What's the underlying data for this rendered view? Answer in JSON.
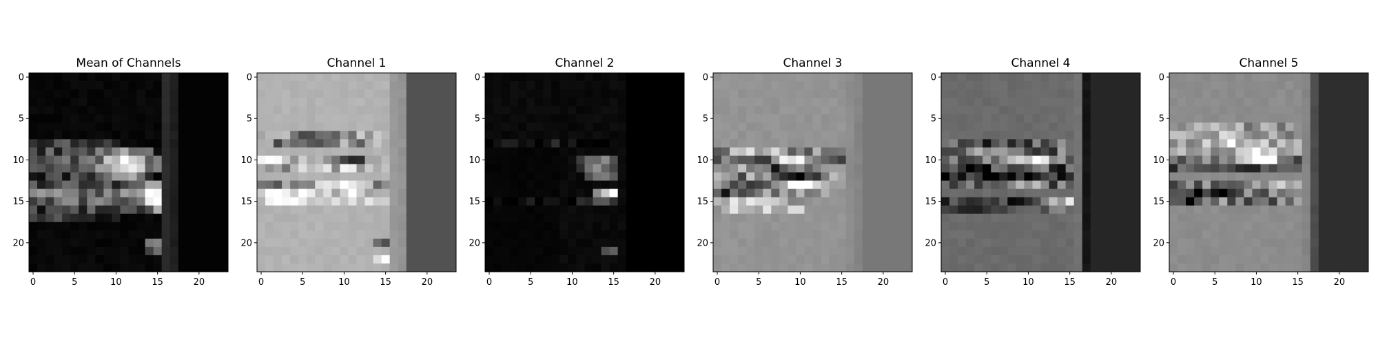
{
  "chart_data": [
    {
      "type": "heatmap",
      "title": "Mean of Channels",
      "colormap": "gray",
      "size": 24,
      "xticks": [
        0,
        5,
        10,
        15,
        20
      ],
      "yticks": [
        0,
        5,
        10,
        15,
        20
      ],
      "background_level": 0.03,
      "bands": [
        {
          "col_start": 16,
          "col_end": 16,
          "value": 0.17
        },
        {
          "col_start": 17,
          "col_end": 17,
          "value": 0.12
        },
        {
          "col_start": 18,
          "col_end": 23,
          "value": 0.01
        }
      ],
      "features": [
        {
          "row": 10,
          "col_start": 0,
          "col_end": 15,
          "peak_col": 11,
          "peak": 0.9,
          "base": 0.32,
          "spread": 0.45
        },
        {
          "row": 11,
          "col_start": 0,
          "col_end": 15,
          "peak_col": 11,
          "peak": 0.95,
          "base": 0.38,
          "spread": 0.42
        },
        {
          "row": 9,
          "col_start": 0,
          "col_end": 14,
          "peak_col": 11,
          "peak": 0.6,
          "base": 0.25,
          "spread": 0.4
        },
        {
          "row": 12,
          "col_start": 0,
          "col_end": 14,
          "peak_col": 11,
          "peak": 0.55,
          "base": 0.24,
          "spread": 0.4
        },
        {
          "row": 14,
          "col_start": 0,
          "col_end": 16,
          "peak_col": 15,
          "peak": 0.95,
          "base": 0.42,
          "spread": 0.45
        },
        {
          "row": 15,
          "col_start": 0,
          "col_end": 16,
          "peak_col": 15,
          "peak": 0.9,
          "base": 0.4,
          "spread": 0.42
        },
        {
          "row": 13,
          "col_start": 0,
          "col_end": 16,
          "peak_col": 15,
          "peak": 0.55,
          "base": 0.24,
          "spread": 0.4
        },
        {
          "row": 16,
          "col_start": 0,
          "col_end": 16,
          "peak_col": 15,
          "peak": 0.5,
          "base": 0.22,
          "spread": 0.4
        },
        {
          "row": 8,
          "col_start": 0,
          "col_end": 10,
          "peak_col": 3,
          "peak": 0.3,
          "base": 0.16,
          "spread": 0.3
        },
        {
          "row": 17,
          "col_start": 0,
          "col_end": 10,
          "peak_col": 3,
          "peak": 0.24,
          "base": 0.13,
          "spread": 0.3
        },
        {
          "row": 20,
          "col_start": 14,
          "col_end": 16,
          "peak_col": 15,
          "peak": 0.45,
          "base": 0.25,
          "spread": 0.2
        },
        {
          "row": 21,
          "col_start": 14,
          "col_end": 16,
          "peak_col": 15,
          "peak": 0.35,
          "base": 0.2,
          "spread": 0.2
        }
      ],
      "seed": 11
    },
    {
      "type": "heatmap",
      "title": "Channel 1",
      "colormap": "gray",
      "size": 24,
      "xticks": [
        0,
        5,
        10,
        15,
        20
      ],
      "yticks": [
        0,
        5,
        10,
        15,
        20
      ],
      "background_level": 0.7,
      "bands": [
        {
          "col_start": 16,
          "col_end": 16,
          "value": 0.6
        },
        {
          "col_start": 17,
          "col_end": 17,
          "value": 0.58
        },
        {
          "col_start": 18,
          "col_end": 23,
          "value": 0.32
        }
      ],
      "features": [
        {
          "row": 7,
          "col_start": 0,
          "col_end": 14,
          "peak_col": 6,
          "peak": 0.35,
          "base": 0.6,
          "spread": 0.5
        },
        {
          "row": 8,
          "col_start": 0,
          "col_end": 14,
          "peak_col": 5,
          "peak": 0.3,
          "base": 0.55,
          "spread": 0.5
        },
        {
          "row": 10,
          "col_start": 0,
          "col_end": 15,
          "peak_col": 10,
          "peak": 0.1,
          "base": 0.85,
          "spread": 0.6
        },
        {
          "row": 11,
          "col_start": 0,
          "col_end": 15,
          "peak_col": 12,
          "peak": 0.8,
          "base": 0.7,
          "spread": 0.5
        },
        {
          "row": 13,
          "col_start": 0,
          "col_end": 15,
          "peak_col": 9,
          "peak": 1.0,
          "base": 0.55,
          "spread": 0.55
        },
        {
          "row": 14,
          "col_start": 0,
          "col_end": 15,
          "peak_col": 5,
          "peak": 0.92,
          "base": 0.82,
          "spread": 0.4
        },
        {
          "row": 15,
          "col_start": 0,
          "col_end": 15,
          "peak_col": 3,
          "peak": 0.88,
          "base": 0.8,
          "spread": 0.3
        },
        {
          "row": 20,
          "col_start": 14,
          "col_end": 16,
          "peak_col": 15,
          "peak": 0.45,
          "base": 0.6,
          "spread": 0.3
        },
        {
          "row": 22,
          "col_start": 14,
          "col_end": 16,
          "peak_col": 15,
          "peak": 0.95,
          "base": 0.65,
          "spread": 0.3
        }
      ],
      "seed": 23
    },
    {
      "type": "heatmap",
      "title": "Channel 2",
      "colormap": "gray",
      "size": 24,
      "xticks": [
        0,
        5,
        10,
        15,
        20
      ],
      "yticks": [
        0,
        5,
        10,
        15,
        20
      ],
      "background_level": 0.04,
      "bands": [
        {
          "col_start": 16,
          "col_end": 16,
          "value": 0.04
        },
        {
          "col_start": 17,
          "col_end": 23,
          "value": 0.0
        }
      ],
      "features": [
        {
          "row": 10,
          "col_start": 11,
          "col_end": 15,
          "peak_col": 13,
          "peak": 0.55,
          "base": 0.15,
          "spread": 0.3
        },
        {
          "row": 11,
          "col_start": 11,
          "col_end": 15,
          "peak_col": 13,
          "peak": 0.45,
          "base": 0.12,
          "spread": 0.3
        },
        {
          "row": 12,
          "col_start": 12,
          "col_end": 15,
          "peak_col": 13,
          "peak": 0.5,
          "base": 0.12,
          "spread": 0.3
        },
        {
          "row": 14,
          "col_start": 13,
          "col_end": 16,
          "peak_col": 15,
          "peak": 1.0,
          "base": 0.25,
          "spread": 0.2
        },
        {
          "row": 15,
          "col_start": 0,
          "col_end": 16,
          "peak_col": 14,
          "peak": 0.3,
          "base": 0.05,
          "spread": 0.2
        },
        {
          "row": 21,
          "col_start": 14,
          "col_end": 16,
          "peak_col": 15,
          "peak": 0.35,
          "base": 0.08,
          "spread": 0.2
        },
        {
          "row": 8,
          "col_start": 0,
          "col_end": 14,
          "peak_col": 5,
          "peak": 0.1,
          "base": 0.04,
          "spread": 0.3
        }
      ],
      "zero_region": {
        "row_start": 9,
        "row_end": 23,
        "col_start": 0,
        "col_end": 8,
        "value": 0.01
      },
      "seed": 37
    },
    {
      "type": "heatmap",
      "title": "Channel 3",
      "colormap": "gray",
      "size": 24,
      "xticks": [
        0,
        5,
        10,
        15,
        20
      ],
      "yticks": [
        0,
        5,
        10,
        15,
        20
      ],
      "background_level": 0.58,
      "bands": [
        {
          "col_start": 16,
          "col_end": 16,
          "value": 0.55
        },
        {
          "col_start": 17,
          "col_end": 17,
          "value": 0.52
        },
        {
          "col_start": 18,
          "col_end": 23,
          "value": 0.47
        }
      ],
      "features": [
        {
          "row": 9,
          "col_start": 0,
          "col_end": 15,
          "peak_col": 4,
          "peak": 0.85,
          "base": 0.55,
          "spread": 0.5
        },
        {
          "row": 10,
          "col_start": 0,
          "col_end": 15,
          "peak_col": 9,
          "peak": 0.85,
          "base": 0.35,
          "spread": 0.55
        },
        {
          "row": 11,
          "col_start": 0,
          "col_end": 15,
          "peak_col": 7,
          "peak": 0.25,
          "base": 0.6,
          "spread": 0.5
        },
        {
          "row": 12,
          "col_start": 0,
          "col_end": 15,
          "peak_col": 10,
          "peak": 0.05,
          "base": 0.5,
          "spread": 0.55
        },
        {
          "row": 13,
          "col_start": 0,
          "col_end": 15,
          "peak_col": 10,
          "peak": 0.95,
          "base": 0.45,
          "spread": 0.5
        },
        {
          "row": 14,
          "col_start": 0,
          "col_end": 14,
          "peak_col": 1,
          "peak": 0.2,
          "base": 0.55,
          "spread": 0.4
        },
        {
          "row": 15,
          "col_start": 0,
          "col_end": 10,
          "peak_col": 3,
          "peak": 0.75,
          "base": 0.65,
          "spread": 0.4
        },
        {
          "row": 16,
          "col_start": 0,
          "col_end": 10,
          "peak_col": 2,
          "peak": 0.78,
          "base": 0.7,
          "spread": 0.4
        }
      ],
      "seed": 51
    },
    {
      "type": "heatmap",
      "title": "Channel 4",
      "colormap": "gray",
      "size": 24,
      "xticks": [
        0,
        5,
        10,
        15,
        20
      ],
      "yticks": [
        0,
        5,
        10,
        15,
        20
      ],
      "background_level": 0.42,
      "bands": [
        {
          "col_start": 16,
          "col_end": 16,
          "value": 0.45
        },
        {
          "col_start": 17,
          "col_end": 17,
          "value": 0.08
        },
        {
          "col_start": 18,
          "col_end": 23,
          "value": 0.15
        }
      ],
      "features": [
        {
          "row": 8,
          "col_start": 0,
          "col_end": 14,
          "peak_col": 5,
          "peak": 0.3,
          "base": 0.36,
          "spread": 0.5
        },
        {
          "row": 9,
          "col_start": 0,
          "col_end": 14,
          "peak_col": 4,
          "peak": 0.55,
          "base": 0.4,
          "spread": 0.5
        },
        {
          "row": 10,
          "col_start": 0,
          "col_end": 15,
          "peak_col": 11,
          "peak": 1.0,
          "base": 0.42,
          "spread": 0.5
        },
        {
          "row": 11,
          "col_start": 0,
          "col_end": 15,
          "peak_col": 3,
          "peak": 0.05,
          "base": 0.3,
          "spread": 0.5
        },
        {
          "row": 12,
          "col_start": 0,
          "col_end": 15,
          "peak_col": 2,
          "peak": 0.05,
          "base": 0.25,
          "spread": 0.5
        },
        {
          "row": 13,
          "col_start": 0,
          "col_end": 15,
          "peak_col": 10,
          "peak": 0.55,
          "base": 0.35,
          "spread": 0.5
        },
        {
          "row": 15,
          "col_start": 0,
          "col_end": 16,
          "peak_col": 15,
          "peak": 0.9,
          "base": 0.25,
          "spread": 0.45
        },
        {
          "row": 16,
          "col_start": 0,
          "col_end": 14,
          "peak_col": 2,
          "peak": 0.2,
          "base": 0.35,
          "spread": 0.4
        }
      ],
      "seed": 64
    },
    {
      "type": "heatmap",
      "title": "Channel 5",
      "colormap": "gray",
      "size": 24,
      "xticks": [
        0,
        5,
        10,
        15,
        20
      ],
      "yticks": [
        0,
        5,
        10,
        15,
        20
      ],
      "background_level": 0.55,
      "bands": [
        {
          "col_start": 16,
          "col_end": 16,
          "value": 0.52
        },
        {
          "col_start": 17,
          "col_end": 17,
          "value": 0.3
        },
        {
          "col_start": 18,
          "col_end": 23,
          "value": 0.18
        }
      ],
      "features": [
        {
          "row": 6,
          "col_start": 0,
          "col_end": 14,
          "peak_col": 6,
          "peak": 0.65,
          "base": 0.58,
          "spread": 0.4
        },
        {
          "row": 7,
          "col_start": 0,
          "col_end": 14,
          "peak_col": 6,
          "peak": 0.7,
          "base": 0.6,
          "spread": 0.4
        },
        {
          "row": 8,
          "col_start": 0,
          "col_end": 15,
          "peak_col": 8,
          "peak": 0.85,
          "base": 0.65,
          "spread": 0.5
        },
        {
          "row": 9,
          "col_start": 0,
          "col_end": 15,
          "peak_col": 11,
          "peak": 0.95,
          "base": 0.6,
          "spread": 0.5
        },
        {
          "row": 10,
          "col_start": 0,
          "col_end": 15,
          "peak_col": 11,
          "peak": 1.0,
          "base": 0.4,
          "spread": 0.5
        },
        {
          "row": 11,
          "col_start": 0,
          "col_end": 15,
          "peak_col": 5,
          "peak": 0.15,
          "base": 0.35,
          "spread": 0.5
        },
        {
          "row": 13,
          "col_start": 0,
          "col_end": 15,
          "peak_col": 15,
          "peak": 0.9,
          "base": 0.45,
          "spread": 0.5
        },
        {
          "row": 14,
          "col_start": 0,
          "col_end": 15,
          "peak_col": 4,
          "peak": 0.05,
          "base": 0.4,
          "spread": 0.5
        },
        {
          "row": 15,
          "col_start": 0,
          "col_end": 15,
          "peak_col": 1,
          "peak": 0.1,
          "base": 0.45,
          "spread": 0.5
        }
      ],
      "seed": 79
    }
  ]
}
